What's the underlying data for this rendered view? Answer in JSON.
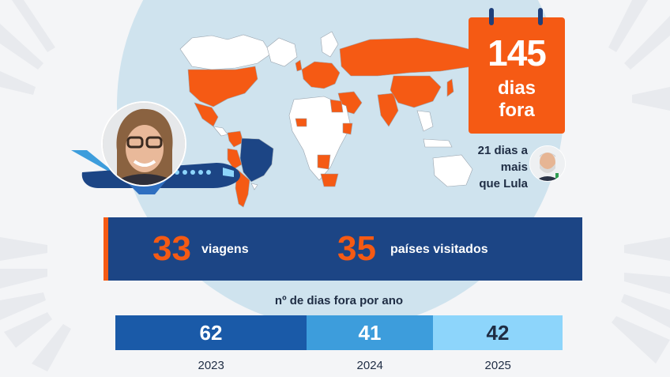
{
  "calendar": {
    "number": "145",
    "label": "dias\nfora",
    "color": "#f55a14"
  },
  "comparison": {
    "text": "21 dias a\nmais\nque Lula"
  },
  "stats": {
    "trips_value": "33",
    "trips_label": "viagens",
    "countries_value": "35",
    "countries_label": "países visitados"
  },
  "chart_data": {
    "type": "bar",
    "title": "nº de dias fora por ano",
    "categories": [
      "2023",
      "2024",
      "2025"
    ],
    "values": [
      62,
      41,
      42
    ],
    "value_labels": [
      "62",
      "41",
      "42"
    ],
    "colors": [
      "#1a5aa8",
      "#3d9ddc",
      "#8dd5fb"
    ]
  },
  "colors": {
    "navy": "#1c4585",
    "orange": "#f55a14",
    "ocean": "#cfe3ee"
  },
  "icons": [
    "airplane-icon",
    "calendar-icon"
  ]
}
